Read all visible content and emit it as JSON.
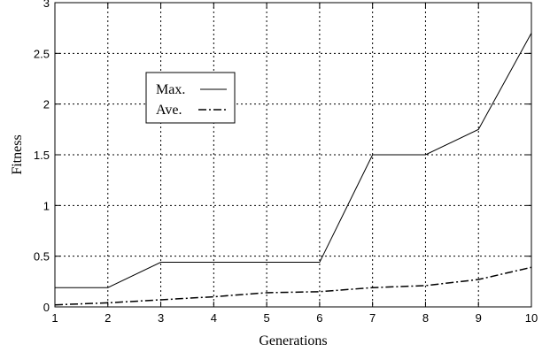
{
  "chart_data": {
    "type": "line",
    "xlabel": "Generations",
    "ylabel": "Fitness",
    "x": [
      1,
      2,
      3,
      4,
      5,
      6,
      7,
      8,
      9,
      10
    ],
    "xlim": [
      1,
      10
    ],
    "ylim": [
      0,
      3
    ],
    "x_ticks": [
      "1",
      "2",
      "3",
      "4",
      "5",
      "6",
      "7",
      "8",
      "9",
      "10"
    ],
    "y_ticks": [
      "0",
      "0.5",
      "1",
      "1.5",
      "2",
      "2.5",
      "3"
    ],
    "grid": true,
    "legend_position": "upper-left",
    "series": [
      {
        "name": "Max.",
        "style": "solid",
        "values": [
          0.19,
          0.19,
          0.44,
          0.44,
          0.44,
          0.44,
          1.5,
          1.5,
          1.75,
          2.7
        ]
      },
      {
        "name": "Ave.",
        "style": "dash-dot",
        "values": [
          0.02,
          0.04,
          0.07,
          0.1,
          0.14,
          0.15,
          0.19,
          0.21,
          0.27,
          0.39
        ]
      }
    ]
  }
}
